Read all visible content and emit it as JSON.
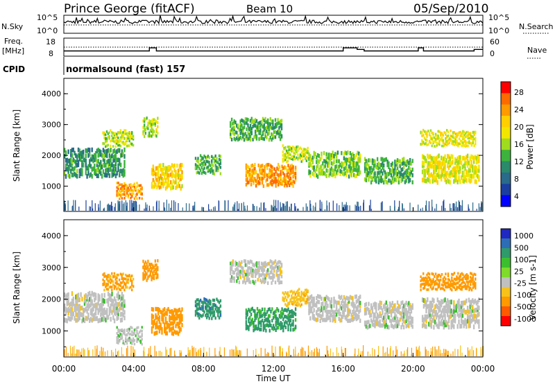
{
  "header": {
    "title": "Prince George (fitACF)",
    "beam": "Beam 10",
    "date": "05/Sep/2010"
  },
  "strip_noise": {
    "left_label": "N.Sky",
    "left_ticks": [
      "10^5",
      "10^0"
    ],
    "right_ticks": [
      "10^5",
      "10^0"
    ],
    "right_label": "N.Search"
  },
  "strip_freq": {
    "left_label_line1": "Freq.",
    "left_label_line2": "[MHz]",
    "left_ticks": [
      "18",
      "8"
    ],
    "right_ticks": [
      "60",
      "0"
    ],
    "right_label": "Nave"
  },
  "cpid": {
    "label": "CPID",
    "value": "normalsound (fast) 157"
  },
  "power_panel": {
    "ylabel": "Slant Range [km]",
    "yticks": [
      "4000",
      "3000",
      "2000",
      "1000"
    ],
    "colorbar_label": "Power [dB]",
    "colorbar_ticks": [
      "28",
      "24",
      "20",
      "16",
      "12",
      "8",
      "4"
    ],
    "colorbar_colors": [
      "#ff0000",
      "#ff6a00",
      "#ff9a00",
      "#ffcf00",
      "#f2e600",
      "#9fdc1e",
      "#3db33d",
      "#2a8a6a",
      "#2a6a8a",
      "#1a3fa0",
      "#0000ff"
    ]
  },
  "velocity_panel": {
    "ylabel": "Slant Range [km]",
    "yticks": [
      "4000",
      "3000",
      "2000",
      "1000"
    ],
    "colorbar_label": "Velocity [m s-1]",
    "colorbar_ticks": [
      "1000",
      "500",
      "100",
      "25",
      "-25",
      "-100",
      "-500",
      "-1000"
    ],
    "colorbar_colors": [
      "#1f28c0",
      "#2d6db6",
      "#2f9a6a",
      "#3cbf2e",
      "#7fdc2a",
      "#c0c0c0",
      "#f7c21a",
      "#ff9a00",
      "#ff5a00",
      "#ff0000"
    ]
  },
  "x_axis": {
    "ticks": [
      "00:00",
      "04:00",
      "08:00",
      "12:00",
      "16:00",
      "20:00",
      "00:00"
    ],
    "label": "Time UT"
  },
  "chart_data": {
    "type": "heatmap",
    "title": "Prince George (fitACF)",
    "xlabel": "Time UT",
    "ylabel": "Slant Range [km]",
    "x_range_hours": [
      0,
      24
    ],
    "y_range_km": [
      180,
      4500
    ],
    "power_scale_db": [
      0,
      30
    ],
    "velocity_scale_ms": [
      -1000,
      1000
    ],
    "freq_steps": [
      {
        "x": 0,
        "freq": 10.5
      },
      {
        "x": 4.9,
        "freq": 12.5
      },
      {
        "x": 5.3,
        "freq": 10.5
      },
      {
        "x": 16.0,
        "freq": 12.5
      },
      {
        "x": 16.8,
        "freq": 11.5
      },
      {
        "x": 17.2,
        "freq": 10.5
      },
      {
        "x": 20.3,
        "freq": 12.5
      },
      {
        "x": 20.6,
        "freq": 10.5
      },
      {
        "x": 23.5,
        "freq": 11.5
      }
    ],
    "echo_regions": [
      {
        "t0": 0.0,
        "t1": 3.5,
        "r0": 1300,
        "r1": 2200,
        "power": 10,
        "velocity": 0
      },
      {
        "t0": 2.2,
        "t1": 4.0,
        "r0": 2300,
        "r1": 2800,
        "power": 16,
        "velocity": -120
      },
      {
        "t0": 3.0,
        "t1": 4.5,
        "r0": 600,
        "r1": 1100,
        "power": 24,
        "velocity": 5
      },
      {
        "t0": 4.5,
        "t1": 5.4,
        "r0": 2600,
        "r1": 3200,
        "power": 16,
        "velocity": -200
      },
      {
        "t0": 5.0,
        "t1": 6.8,
        "r0": 900,
        "r1": 1700,
        "power": 20,
        "velocity": -300
      },
      {
        "t0": 7.5,
        "t1": 9.0,
        "r0": 1400,
        "r1": 2000,
        "power": 12,
        "velocity": 80
      },
      {
        "t0": 9.5,
        "t1": 12.5,
        "r0": 2500,
        "r1": 3200,
        "power": 12,
        "velocity": 0
      },
      {
        "t0": 10.4,
        "t1": 13.3,
        "r0": 1000,
        "r1": 1700,
        "power": 24,
        "velocity": 60
      },
      {
        "t0": 12.5,
        "t1": 14.0,
        "r0": 1800,
        "r1": 2300,
        "power": 16,
        "velocity": -80
      },
      {
        "t0": 14.0,
        "t1": 17.0,
        "r0": 1300,
        "r1": 2100,
        "power": 14,
        "velocity": 0
      },
      {
        "t0": 17.2,
        "t1": 20.0,
        "r0": 1100,
        "r1": 1900,
        "power": 12,
        "velocity": 0
      },
      {
        "t0": 20.5,
        "t1": 23.8,
        "r0": 1100,
        "r1": 2000,
        "power": 18,
        "velocity": 0
      },
      {
        "t0": 20.4,
        "t1": 23.6,
        "r0": 2300,
        "r1": 2800,
        "power": 18,
        "velocity": -150
      }
    ]
  }
}
